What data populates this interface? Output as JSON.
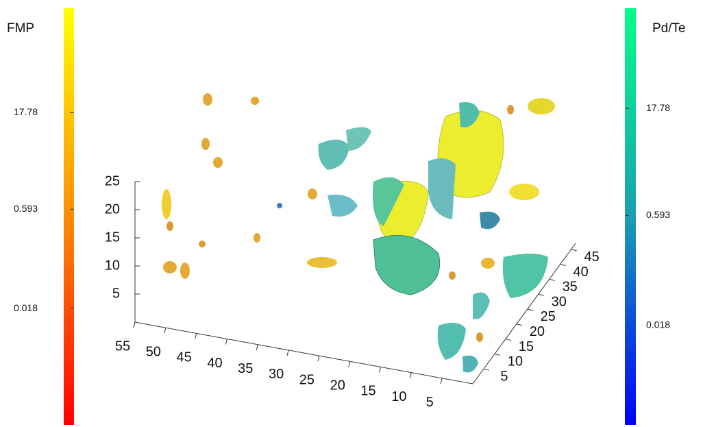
{
  "chart_data": {
    "type": "volume3d",
    "colorbars": [
      {
        "label": "FMP",
        "log": true,
        "clim": [
          0.0003,
          700
        ],
        "ticks": [
          17.78,
          0.593,
          0.018
        ],
        "colors": [
          "#ff0000",
          "#ff8c00",
          "#ffff00"
        ]
      },
      {
        "label": "Pd/Te",
        "log": true,
        "clim": [
          0.00076,
          430
        ],
        "ticks": [
          17.78,
          0.593,
          0.018
        ],
        "colors": [
          "#0000ff",
          "#1a9fb0",
          "#00ff88"
        ]
      }
    ],
    "xlim": [
      0,
      55
    ],
    "xticks": [
      55,
      50,
      45,
      40,
      35,
      30,
      25,
      20,
      15,
      10,
      5
    ],
    "ylim": [
      0,
      47
    ],
    "yticks": [
      5,
      10,
      15,
      20,
      25,
      30,
      35,
      40,
      45
    ],
    "zlim": [
      0,
      25
    ],
    "zticks": [
      5,
      10,
      15,
      20,
      25
    ]
  }
}
